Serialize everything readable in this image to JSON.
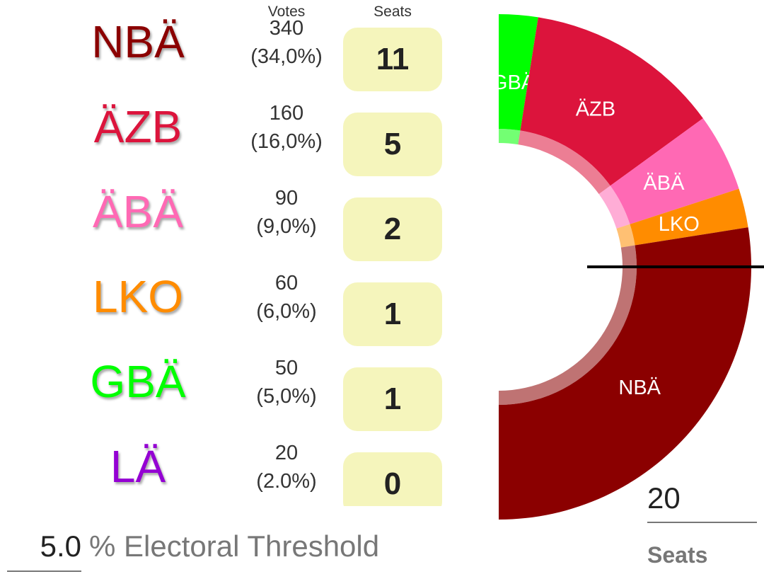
{
  "headers": {
    "votes": "Votes",
    "seats": "Seats"
  },
  "parties": [
    {
      "name": "NBÄ",
      "votes": "340",
      "percent": "(34,0%)",
      "seats": "11",
      "color": "#8b0000"
    },
    {
      "name": "ÄZB",
      "votes": "160",
      "percent": "(16,0%)",
      "seats": "5",
      "color": "#dc143c"
    },
    {
      "name": "ÄBÄ",
      "votes": "90",
      "percent": "(9,0%)",
      "seats": "2",
      "color": "#ff69b4"
    },
    {
      "name": "LKO",
      "votes": "60",
      "percent": "(6,0%)",
      "seats": "1",
      "color": "#ff8c00"
    },
    {
      "name": "GBÄ",
      "votes": "50",
      "percent": "(5,0%)",
      "seats": "1",
      "color": "#00ff00"
    },
    {
      "name": "LÄ",
      "votes": "20",
      "percent": "(2.0%)",
      "seats": "0",
      "color": "#9400d3"
    }
  ],
  "threshold": {
    "value": "5.0",
    "label": "% Electoral Threshold"
  },
  "total_seats": {
    "value": "20",
    "label": "Seats"
  },
  "chart_data": {
    "type": "pie",
    "style": "half-donut parliament, right half visible, majority line",
    "order_from_top": [
      "GBÄ",
      "ÄZB",
      "ÄBÄ",
      "LKO",
      "NBÄ"
    ],
    "values": [
      1,
      5,
      2,
      1,
      11
    ],
    "colors": [
      "#00ff00",
      "#dc143c",
      "#ff69b4",
      "#ff8c00",
      "#8b0000"
    ],
    "total": 20
  }
}
